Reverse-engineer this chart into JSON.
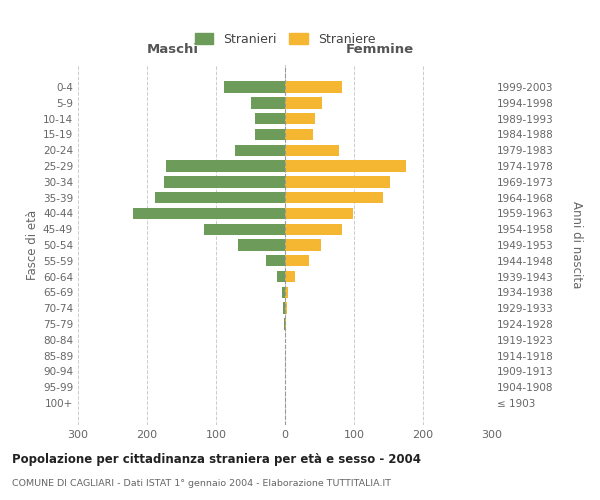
{
  "age_groups": [
    "100+",
    "95-99",
    "90-94",
    "85-89",
    "80-84",
    "75-79",
    "70-74",
    "65-69",
    "60-64",
    "55-59",
    "50-54",
    "45-49",
    "40-44",
    "35-39",
    "30-34",
    "25-29",
    "20-24",
    "15-19",
    "10-14",
    "5-9",
    "0-4"
  ],
  "birth_years": [
    "≤ 1903",
    "1904-1908",
    "1909-1913",
    "1914-1918",
    "1919-1923",
    "1924-1928",
    "1929-1933",
    "1934-1938",
    "1939-1943",
    "1944-1948",
    "1949-1953",
    "1954-1958",
    "1959-1963",
    "1964-1968",
    "1969-1973",
    "1974-1978",
    "1979-1983",
    "1984-1988",
    "1989-1993",
    "1994-1998",
    "1999-2003"
  ],
  "maschi": [
    0,
    0,
    0,
    0,
    0,
    2,
    3,
    4,
    12,
    28,
    68,
    118,
    220,
    188,
    175,
    172,
    72,
    44,
    44,
    50,
    88
  ],
  "femmine": [
    0,
    0,
    0,
    0,
    0,
    1,
    3,
    5,
    14,
    35,
    52,
    82,
    98,
    142,
    152,
    175,
    78,
    40,
    44,
    54,
    82
  ],
  "maschi_color": "#6d9b5a",
  "femmine_color": "#f5b731",
  "xlim": 300,
  "title": "Popolazione per cittadinanza straniera per età e sesso - 2004",
  "subtitle": "COMUNE DI CAGLIARI - Dati ISTAT 1° gennaio 2004 - Elaborazione TUTTITALIA.IT",
  "ylabel_left": "Fasce di età",
  "ylabel_right": "Anni di nascita",
  "xlabel_left": "Maschi",
  "xlabel_right": "Femmine",
  "legend_stranieri": "Stranieri",
  "legend_straniere": "Straniere",
  "background_color": "#ffffff",
  "grid_color": "#cccccc"
}
